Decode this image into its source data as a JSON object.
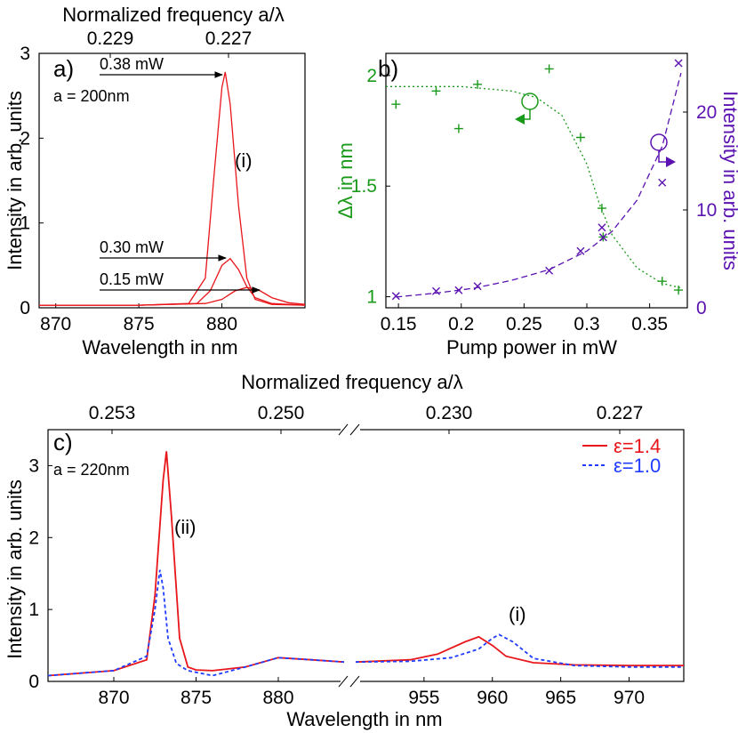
{
  "colors": {
    "red": "#e8161b",
    "blue": "#1f3cff",
    "green": "#1a9a1a",
    "purple": "#5b12b0",
    "black": "#000000"
  },
  "chart_data": [
    {
      "panel": "a)",
      "type": "line",
      "top_axis_label": "Normalized frequency a/λ",
      "top_ticks": [
        "0.229",
        "0.227"
      ],
      "xlabel": "Wavelength in nm",
      "ylabel": "Intensity in arb. units",
      "xticks": [
        "870",
        "875",
        "880"
      ],
      "yticks": [
        "0",
        "1",
        "2",
        "3"
      ],
      "xlim": [
        869,
        885
      ],
      "ylim": [
        0,
        3
      ],
      "annotation": "a = 200nm",
      "peak_marker": "(i)",
      "series": [
        {
          "name": "0.38 mW",
          "x": [
            869,
            875,
            878,
            879,
            879.5,
            880,
            880.2,
            880.5,
            881,
            881.5,
            882,
            883,
            885
          ],
          "y": [
            0.03,
            0.03,
            0.05,
            0.35,
            1.5,
            2.6,
            2.78,
            2.4,
            1.2,
            0.35,
            0.1,
            0.04,
            0.03
          ]
        },
        {
          "name": "0.30 mW",
          "x": [
            869,
            875,
            878.5,
            879.3,
            880,
            880.5,
            881,
            881.5,
            882,
            883,
            885
          ],
          "y": [
            0.03,
            0.03,
            0.05,
            0.2,
            0.5,
            0.58,
            0.45,
            0.25,
            0.12,
            0.05,
            0.03
          ]
        },
        {
          "name": "0.15 mW",
          "x": [
            869,
            875,
            879,
            880,
            880.8,
            881.5,
            882.3,
            883,
            884,
            885
          ],
          "y": [
            0.03,
            0.03,
            0.05,
            0.1,
            0.2,
            0.24,
            0.2,
            0.12,
            0.06,
            0.04
          ]
        }
      ]
    },
    {
      "panel": "b)",
      "type": "scatter",
      "xlabel": "Pump power in mW",
      "ylabel_left": "Δλ in nm",
      "ylabel_right": "Intensity in arb. units",
      "xticks": [
        "0.15",
        "0.2",
        "0.25",
        "0.3",
        "0.35"
      ],
      "yticks_left": [
        "1",
        "1.5",
        "2"
      ],
      "yticks_right": [
        "0",
        "10",
        "20"
      ],
      "xlim": [
        0.14,
        0.38
      ],
      "ylim_left": [
        0.95,
        2.1
      ],
      "ylim_right": [
        0,
        26
      ],
      "series": [
        {
          "name": "Δλ",
          "marker": "+",
          "x": [
            0.148,
            0.18,
            0.198,
            0.213,
            0.27,
            0.295,
            0.312,
            0.313,
            0.36,
            0.373
          ],
          "y": [
            1.87,
            1.93,
            1.76,
            1.96,
            2.03,
            1.72,
            1.4,
            1.27,
            1.07,
            1.03
          ]
        },
        {
          "name": "Intensity",
          "marker": "x",
          "x": [
            0.148,
            0.18,
            0.198,
            0.213,
            0.27,
            0.295,
            0.312,
            0.313,
            0.36,
            0.373
          ],
          "y": [
            1.2,
            1.7,
            1.8,
            2.2,
            3.8,
            5.8,
            8.2,
            7.2,
            12.8,
            25
          ]
        }
      ],
      "fit_left": {
        "x": [
          0.14,
          0.2,
          0.24,
          0.26,
          0.28,
          0.3,
          0.31,
          0.32,
          0.34,
          0.36,
          0.375
        ],
        "y": [
          1.95,
          1.95,
          1.93,
          1.9,
          1.82,
          1.6,
          1.42,
          1.28,
          1.13,
          1.06,
          1.04
        ]
      },
      "fit_right": {
        "x": [
          0.148,
          0.18,
          0.21,
          0.24,
          0.27,
          0.3,
          0.32,
          0.34,
          0.36,
          0.375
        ],
        "y": [
          1.1,
          1.5,
          2.0,
          2.8,
          3.9,
          5.8,
          7.8,
          11,
          16.5,
          24
        ]
      }
    },
    {
      "panel": "c)",
      "type": "line",
      "top_axis_label": "Normalized frequency a/λ",
      "top_ticks": [
        "0.253",
        "0.250",
        "0.230",
        "0.227"
      ],
      "xlabel": "Wavelength in nm",
      "ylabel": "Intensity in arb. units",
      "xticks": [
        "870",
        "875",
        "880",
        "955",
        "960",
        "965",
        "970"
      ],
      "yticks": [
        "0",
        "1",
        "2",
        "3"
      ],
      "ylim": [
        0,
        3.5
      ],
      "xlim_left": [
        866,
        884
      ],
      "xlim_right": [
        950,
        974
      ],
      "annotation": "a = 220nm",
      "peak_labels": [
        "(ii)",
        "(i)"
      ],
      "series": [
        {
          "name": "ε=1.4",
          "style": "solid",
          "left": {
            "x": [
              866,
              870,
              872,
              872.5,
              873,
              873.2,
              873.5,
              874,
              874.5,
              875,
              876,
              878,
              880,
              882,
              884
            ],
            "y": [
              0.08,
              0.15,
              0.3,
              1.2,
              2.8,
              3.2,
              2.3,
              0.6,
              0.2,
              0.16,
              0.15,
              0.2,
              0.33,
              0.3,
              0.27
            ]
          },
          "right": {
            "x": [
              950,
              954,
              956,
              958,
              959,
              960,
              961,
              963,
              966,
              970,
              974
            ],
            "y": [
              0.27,
              0.3,
              0.38,
              0.55,
              0.62,
              0.5,
              0.35,
              0.26,
              0.23,
              0.22,
              0.22
            ]
          }
        },
        {
          "name": "ε=1.0",
          "style": "dashed",
          "left": {
            "x": [
              866,
              870,
              872,
              872.5,
              872.8,
              873,
              873.3,
              873.8,
              874.5,
              876,
              878,
              880,
              882,
              884
            ],
            "y": [
              0.08,
              0.15,
              0.35,
              1.0,
              1.55,
              1.3,
              0.6,
              0.25,
              0.15,
              0.08,
              0.2,
              0.33,
              0.3,
              0.27
            ]
          },
          "right": {
            "x": [
              950,
              954,
              957,
              959,
              960,
              960.5,
              961.5,
              963,
              966,
              970,
              974
            ],
            "y": [
              0.27,
              0.28,
              0.33,
              0.45,
              0.6,
              0.65,
              0.55,
              0.32,
              0.22,
              0.2,
              0.2
            ]
          }
        }
      ]
    }
  ]
}
